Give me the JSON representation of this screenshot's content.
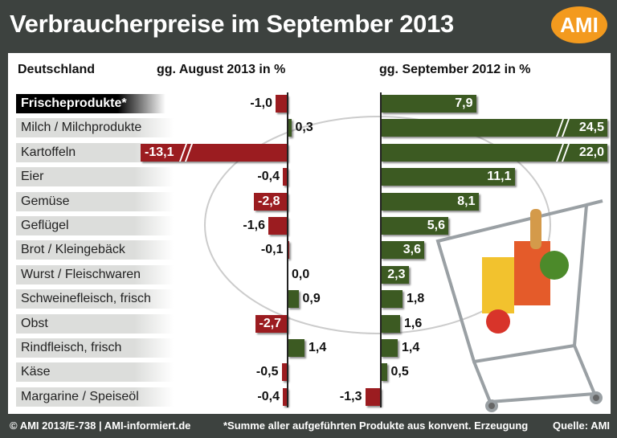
{
  "title": "Verbraucherpreise im September 2013",
  "logo": "AMI",
  "footer": {
    "left": "© AMI 2013/E-738 | AMI-informiert.de",
    "middle": "*Summe aller aufgeführten Produkte aus konvent. Erzeugung",
    "right": "Quelle: AMI"
  },
  "colors": {
    "negative": "#9b1c20",
    "positive": "#3c5a22",
    "frame": "#3d423f",
    "logo": "#f39a1e"
  },
  "chart_data": {
    "type": "bar",
    "orientation": "horizontal",
    "row_header": "Deutschland",
    "categories": [
      "Frischeprodukte*",
      "Milch / Milchprodukte",
      "Kartoffeln",
      "Eier",
      "Gemüse",
      "Geflügel",
      "Brot / Kleingebäck",
      "Wurst / Fleischwaren",
      "Schweinefleisch, frisch",
      "Obst",
      "Rindfleisch, frisch",
      "Käse",
      "Margarine / Speiseöl"
    ],
    "series": [
      {
        "name": "gg. August 2013 in %",
        "values": [
          -1.0,
          0.3,
          -13.1,
          -0.4,
          -2.8,
          -1.6,
          -0.1,
          0.0,
          0.9,
          -2.7,
          1.4,
          -0.5,
          -0.4
        ],
        "labels": [
          "-1,0",
          "0,3",
          "-13,1",
          "-0,4",
          "-2,8",
          "-1,6",
          "-0,1",
          "0,0",
          "0,9",
          "-2,7",
          "1,4",
          "-0,5",
          "-0,4"
        ]
      },
      {
        "name": "gg. September 2012 in %",
        "values": [
          7.9,
          24.5,
          22.0,
          11.1,
          8.1,
          5.6,
          3.6,
          2.3,
          1.8,
          1.6,
          1.4,
          0.5,
          -1.3
        ],
        "labels": [
          "7,9",
          "24,5",
          "22,0",
          "11,1",
          "8,1",
          "5,6",
          "3,6",
          "2,3",
          "1,8",
          "1,6",
          "1,4",
          "0,5",
          "-1,3"
        ]
      }
    ]
  }
}
